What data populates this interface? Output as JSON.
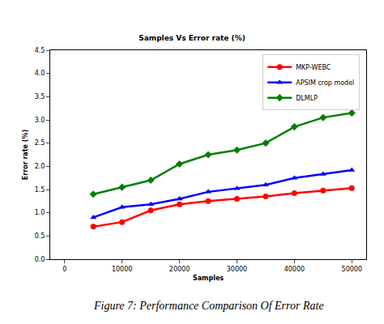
{
  "chart_data": {
    "type": "line",
    "title": "Samples Vs Error rate (%)",
    "x_label": "Samples",
    "y_label": "Error rate (%)",
    "annotations": [
      {
        "text": "Figure 7: Performance Comparison Of Error Rate"
      }
    ],
    "x": [
      5000,
      10000,
      15000,
      20000,
      25000,
      30000,
      35000,
      40000,
      45000,
      50000
    ],
    "series": [
      {
        "name": "MKP-WEBC",
        "color": "#ff0000",
        "marker": "circle",
        "line_style": "solid",
        "values": [
          0.7,
          0.8,
          1.05,
          1.18,
          1.25,
          1.3,
          1.35,
          1.42,
          1.48,
          1.53
        ]
      },
      {
        "name": "APSIM crop model",
        "color": "#0000ff",
        "marker": "triangle-up",
        "line_style": "solid",
        "values": [
          0.9,
          1.12,
          1.18,
          1.3,
          1.45,
          1.52,
          1.6,
          1.75,
          1.83,
          1.92
        ]
      },
      {
        "name": "DLMLP",
        "color": "#008000",
        "marker": "diamond",
        "line_style": "solid",
        "values": [
          1.4,
          1.55,
          1.7,
          2.05,
          2.25,
          2.35,
          2.5,
          2.85,
          3.05,
          3.15
        ]
      }
    ],
    "xlim": [
      -2500,
      52500
    ],
    "xticks": [
      0,
      10000,
      20000,
      30000,
      40000,
      50000
    ],
    "ylim": [
      0,
      4.5
    ],
    "yticks": [
      {
        "value": 0,
        "label": "0.0"
      },
      0.5,
      {
        "value": 1,
        "label": "1.0"
      },
      1.5,
      {
        "value": 2,
        "label": "2.0"
      },
      2.5,
      {
        "value": 3,
        "label": "3.0"
      },
      3.5,
      {
        "value": 4,
        "label": "4.0"
      },
      4.5
    ],
    "grid": false,
    "legend": "upper right"
  }
}
